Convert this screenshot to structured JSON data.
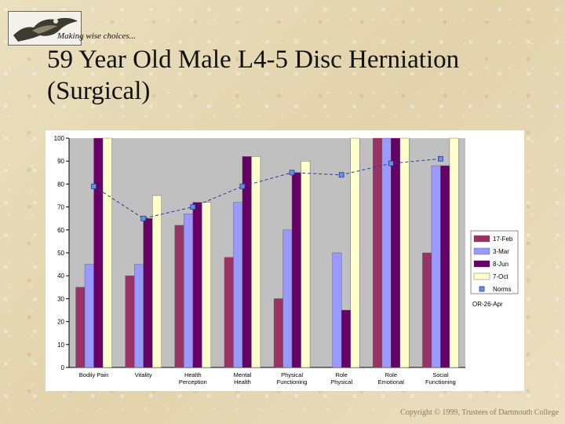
{
  "header": {
    "tagline": "Making wise choices...",
    "title": "59 Year Old Male L4-5 Disc Herniation (Surgical)"
  },
  "footer": {
    "copyright": "Copyright © 1999, Trustees of Dartmouth College"
  },
  "chart_data": {
    "type": "bar",
    "title": "",
    "ylim": [
      0,
      100
    ],
    "yticks": [
      0,
      10,
      20,
      30,
      40,
      50,
      60,
      70,
      80,
      90,
      100
    ],
    "categories": [
      [
        "Bodily Pain"
      ],
      [
        "Vitality"
      ],
      [
        "Health",
        "Perception"
      ],
      [
        "Mental",
        "Health"
      ],
      [
        "Physical",
        "Functioning"
      ],
      [
        "Role",
        "Physical"
      ],
      [
        "Role",
        "Emotional"
      ],
      [
        "Social",
        "Functioning"
      ]
    ],
    "series": [
      {
        "name": "17-Feb",
        "color": "#993366",
        "values": [
          35,
          40,
          62,
          48,
          30,
          0,
          100,
          50
        ]
      },
      {
        "name": "3-Mar",
        "color": "#9999ff",
        "values": [
          45,
          45,
          67,
          72,
          60,
          50,
          100,
          88
        ]
      },
      {
        "name": "8-Jun",
        "color": "#660066",
        "values": [
          100,
          65,
          72,
          92,
          85,
          25,
          100,
          88
        ]
      },
      {
        "name": "7-Oct",
        "color": "#ffffcc",
        "values": [
          100,
          75,
          72,
          92,
          90,
          100,
          100,
          100
        ]
      }
    ],
    "norms": {
      "name": "Norms",
      "color": "#1f3fa0",
      "values": [
        79,
        65,
        70,
        79,
        85,
        84,
        89,
        91
      ]
    },
    "legend_note": "OR-26-Apr",
    "plot_bg": "#c0c0c0"
  }
}
